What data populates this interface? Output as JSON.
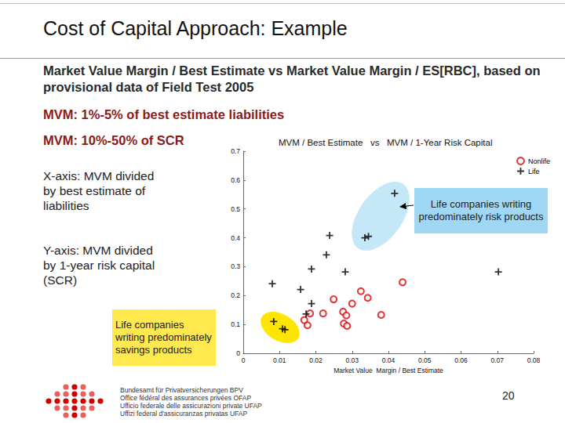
{
  "slide": {
    "title": "Cost of Capital Approach: Example",
    "subtitle": "Market Value Margin / Best Estimate vs Market Value Margin / ES[RBC], based on provisional data of Field Test 2005",
    "highlights": [
      "MVM: 1%-5% of best estimate liabilities",
      "MVM: 10%-50% of SCR"
    ],
    "notes": [
      "X-axis: MVM divided by best estimate of liabilities",
      "Y-axis: MVM divided by 1-year risk capital (SCR)"
    ],
    "footer": [
      "Bundesamt für Privatversicherungen BPV",
      "Office fédéral des assurances privées OFAP",
      "Ufficio federale delle assicurazioni private UFAP",
      "Uffizi federal d'assicuranzas privatas UFAP"
    ],
    "page_number": 20
  },
  "chart_data": {
    "type": "scatter",
    "title": "MVM / Best Estimate   vs   MVM / 1-Year Risk Capital",
    "x_label": "Market Value  Margin / Best Estimate",
    "annotations": [
      "Life companies writing predominately risk products",
      "Life companies writing predominately savings products"
    ],
    "xlim": [
      0,
      0.08
    ],
    "xticks": [
      0,
      0.01,
      0.02,
      0.03,
      0.04,
      0.05,
      0.06,
      0.07,
      0.08
    ],
    "ylim": [
      0,
      0.7
    ],
    "yticks": [
      0,
      0.1,
      0.2,
      0.3,
      0.4,
      0.5,
      0.6,
      0.7
    ],
    "grid": false,
    "legend": "top-right",
    "series": [
      {
        "name": "Nonlife",
        "color": "#e00000",
        "marker": "circle",
        "x": [
          0.0439,
          0.0324,
          0.0343,
          0.0249,
          0.03,
          0.0184,
          0.022,
          0.0275,
          0.0284,
          0.038,
          0.0168,
          0.0177,
          0.0277,
          0.0286
        ],
        "values": [
          0.246,
          0.215,
          0.192,
          0.187,
          0.172,
          0.138,
          0.138,
          0.144,
          0.131,
          0.133,
          0.115,
          0.097,
          0.103,
          0.095
        ]
      },
      {
        "name": "Life",
        "color": "#000000",
        "marker": "plus",
        "x": [
          0.0417,
          0.0238,
          0.0335,
          0.0345,
          0.0229,
          0.0188,
          0.0281,
          0.0703,
          0.008,
          0.0158,
          0.0188,
          0.0173,
          0.0084,
          0.0108,
          0.0115
        ],
        "values": [
          0.554,
          0.408,
          0.4,
          0.405,
          0.341,
          0.292,
          0.282,
          0.282,
          0.241,
          0.221,
          0.172,
          0.136,
          0.11,
          0.085,
          0.082
        ]
      }
    ]
  }
}
